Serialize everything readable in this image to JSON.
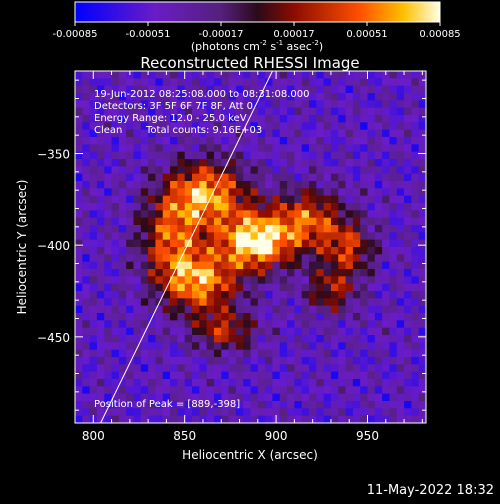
{
  "colorbar": {
    "ticks": [
      "-0.00085",
      "-0.00051",
      "-0.00017",
      "0.00017",
      "0.00051",
      "0.00085"
    ],
    "unit_base": "(photons cm",
    "unit_e1": "-2",
    "unit_mid": " s",
    "unit_e2": "-1",
    "unit_mid2": " asec",
    "unit_e3": "-2",
    "unit_end": ")"
  },
  "chart_data": {
    "type": "heatmap",
    "title": "Reconstructed RHESSI Image",
    "xlabel": "Heliocentric X (arcsec)",
    "ylabel": "Heliocentric Y (arcsec)",
    "xlim": [
      790,
      982
    ],
    "ylim": [
      -497,
      -305
    ],
    "xticks": [
      800,
      850,
      900,
      950
    ],
    "yticks": [
      -350,
      -400,
      -450
    ],
    "color_range": [
      -0.00085,
      0.00085
    ],
    "peak": [
      889,
      -398
    ],
    "limb_line": {
      "x": [
        804,
        898
      ],
      "y": [
        -497,
        -305
      ]
    },
    "sources": [
      {
        "x": 889,
        "y": -398,
        "amp": 0.00085,
        "sx": 14,
        "sy": 11
      },
      {
        "x": 862,
        "y": -372,
        "amp": 0.00062,
        "sx": 16,
        "sy": 13
      },
      {
        "x": 858,
        "y": -420,
        "amp": 0.00058,
        "sx": 15,
        "sy": 12
      },
      {
        "x": 918,
        "y": -386,
        "amp": 0.00038,
        "sx": 14,
        "sy": 12
      },
      {
        "x": 842,
        "y": -396,
        "amp": 0.00032,
        "sx": 12,
        "sy": 16
      },
      {
        "x": 940,
        "y": -402,
        "amp": 0.00024,
        "sx": 10,
        "sy": 10
      },
      {
        "x": 872,
        "y": -447,
        "amp": 0.00022,
        "sx": 12,
        "sy": 8
      },
      {
        "x": 930,
        "y": -425,
        "amp": 0.00018,
        "sx": 10,
        "sy": 9
      }
    ]
  },
  "annotations": {
    "time_range": "19-Jun-2012 08:25:08.000 to 08:31:08.000",
    "detectors": "Detectors: 3F 5F 6F 7F 8F, Att 0",
    "energy": "Energy Range: 12.0 - 25.0 keV",
    "clean_label": "Clean",
    "counts": "Total counts: 9.16E+03",
    "peak_text": "Position of Peak = [889,-398]"
  },
  "footer_timestamp": "11-May-2022 18:32"
}
